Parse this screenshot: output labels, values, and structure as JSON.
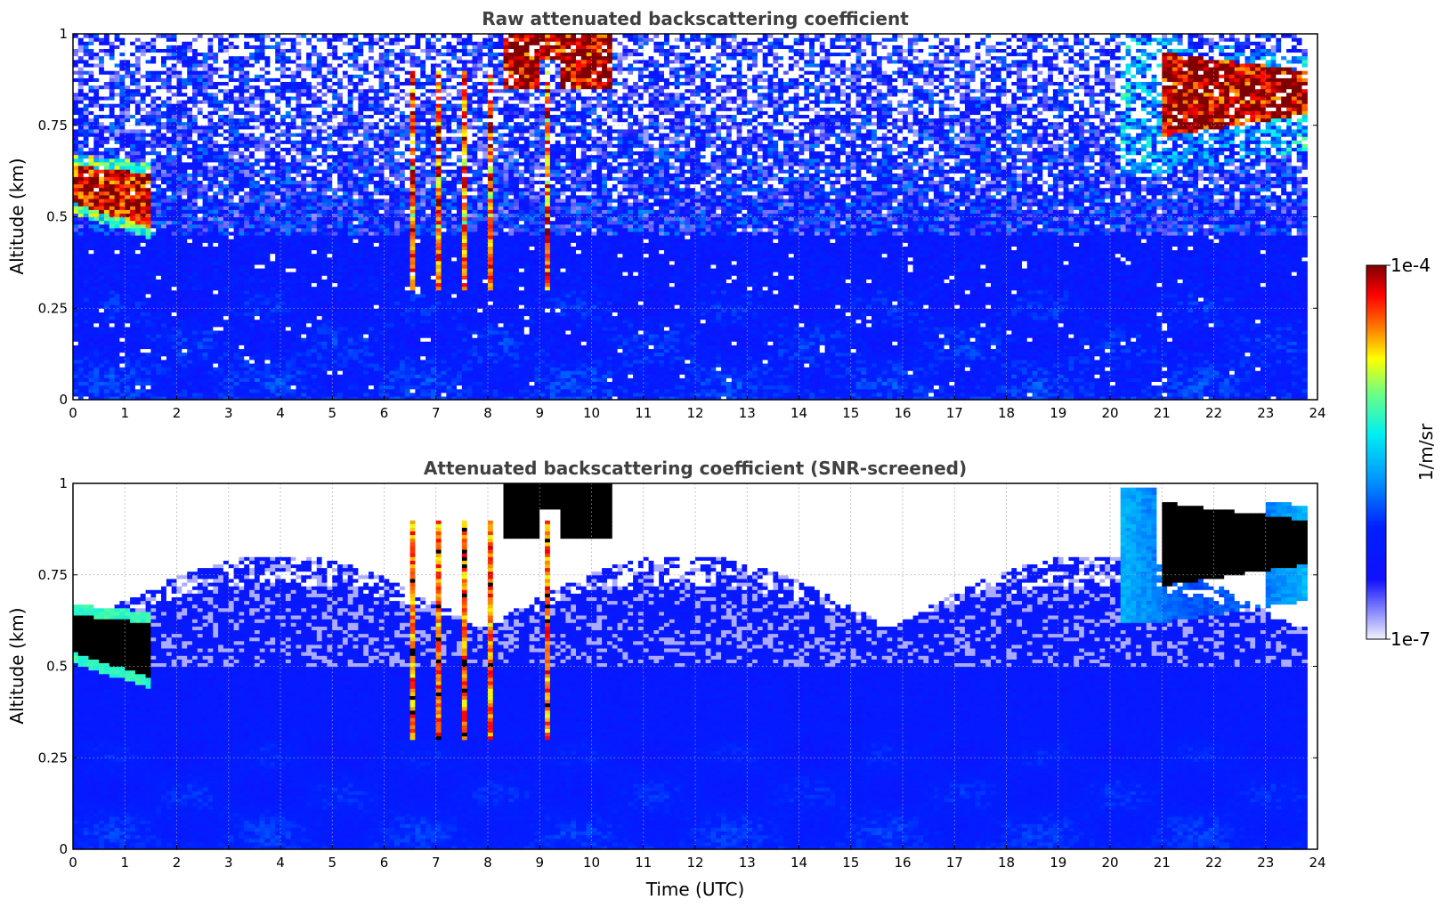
{
  "chart_data": [
    {
      "type": "heatmap",
      "id": "raw",
      "title": "Raw attenuated backscattering coefficient",
      "xlabel": "",
      "ylabel": "Altitude (km)",
      "xlim": [
        0,
        24
      ],
      "ylim": [
        0,
        1
      ],
      "x_ticks": [
        "0",
        "1",
        "2",
        "3",
        "4",
        "5",
        "6",
        "7",
        "8",
        "9",
        "10",
        "11",
        "12",
        "13",
        "14",
        "15",
        "16",
        "17",
        "18",
        "19",
        "20",
        "21",
        "22",
        "23",
        "24"
      ],
      "y_ticks": [
        "0",
        "0.25",
        "0.5",
        "0.75",
        "1"
      ],
      "grid": true,
      "screened": false,
      "data_end_time": 23.8,
      "features": [
        {
          "name": "low cloud",
          "t": [
            0.0,
            1.5
          ],
          "alt_base": [
            0.54,
            0.47
          ],
          "alt_top": [
            0.64,
            0.62
          ]
        },
        {
          "name": "convective plumes",
          "t": [
            6.5,
            9.3
          ],
          "alt_base": 0.3,
          "alt_top": 0.9
        },
        {
          "name": "upper cloud",
          "t": [
            8.3,
            10.4
          ],
          "alt_base": 0.85,
          "alt_top": 1.0
        },
        {
          "name": "elevated layer",
          "t": [
            21.0,
            23.8
          ],
          "alt_base": [
            0.72,
            0.78
          ],
          "alt_top": [
            0.95,
            0.9
          ]
        }
      ]
    },
    {
      "type": "heatmap",
      "id": "screened",
      "title": "Attenuated backscattering coefficient (SNR-screened)",
      "xlabel": "Time (UTC)",
      "ylabel": "Altitude (km)",
      "xlim": [
        0,
        24
      ],
      "ylim": [
        0,
        1
      ],
      "x_ticks": [
        "0",
        "1",
        "2",
        "3",
        "4",
        "5",
        "6",
        "7",
        "8",
        "9",
        "10",
        "11",
        "12",
        "13",
        "14",
        "15",
        "16",
        "17",
        "18",
        "19",
        "20",
        "21",
        "22",
        "23",
        "24"
      ],
      "y_ticks": [
        "0",
        "0.25",
        "0.5",
        "0.75",
        "1"
      ],
      "grid": true,
      "screened": true,
      "data_end_time": 23.8
    }
  ],
  "colorbar": {
    "label": "1/m/sr",
    "max_label": "1e-4",
    "min_label": "1e-7",
    "scale": "log",
    "range": [
      1e-07,
      0.0001
    ],
    "colormap": "jet-like (white → blue → cyan → yellow → red → dark red)"
  }
}
